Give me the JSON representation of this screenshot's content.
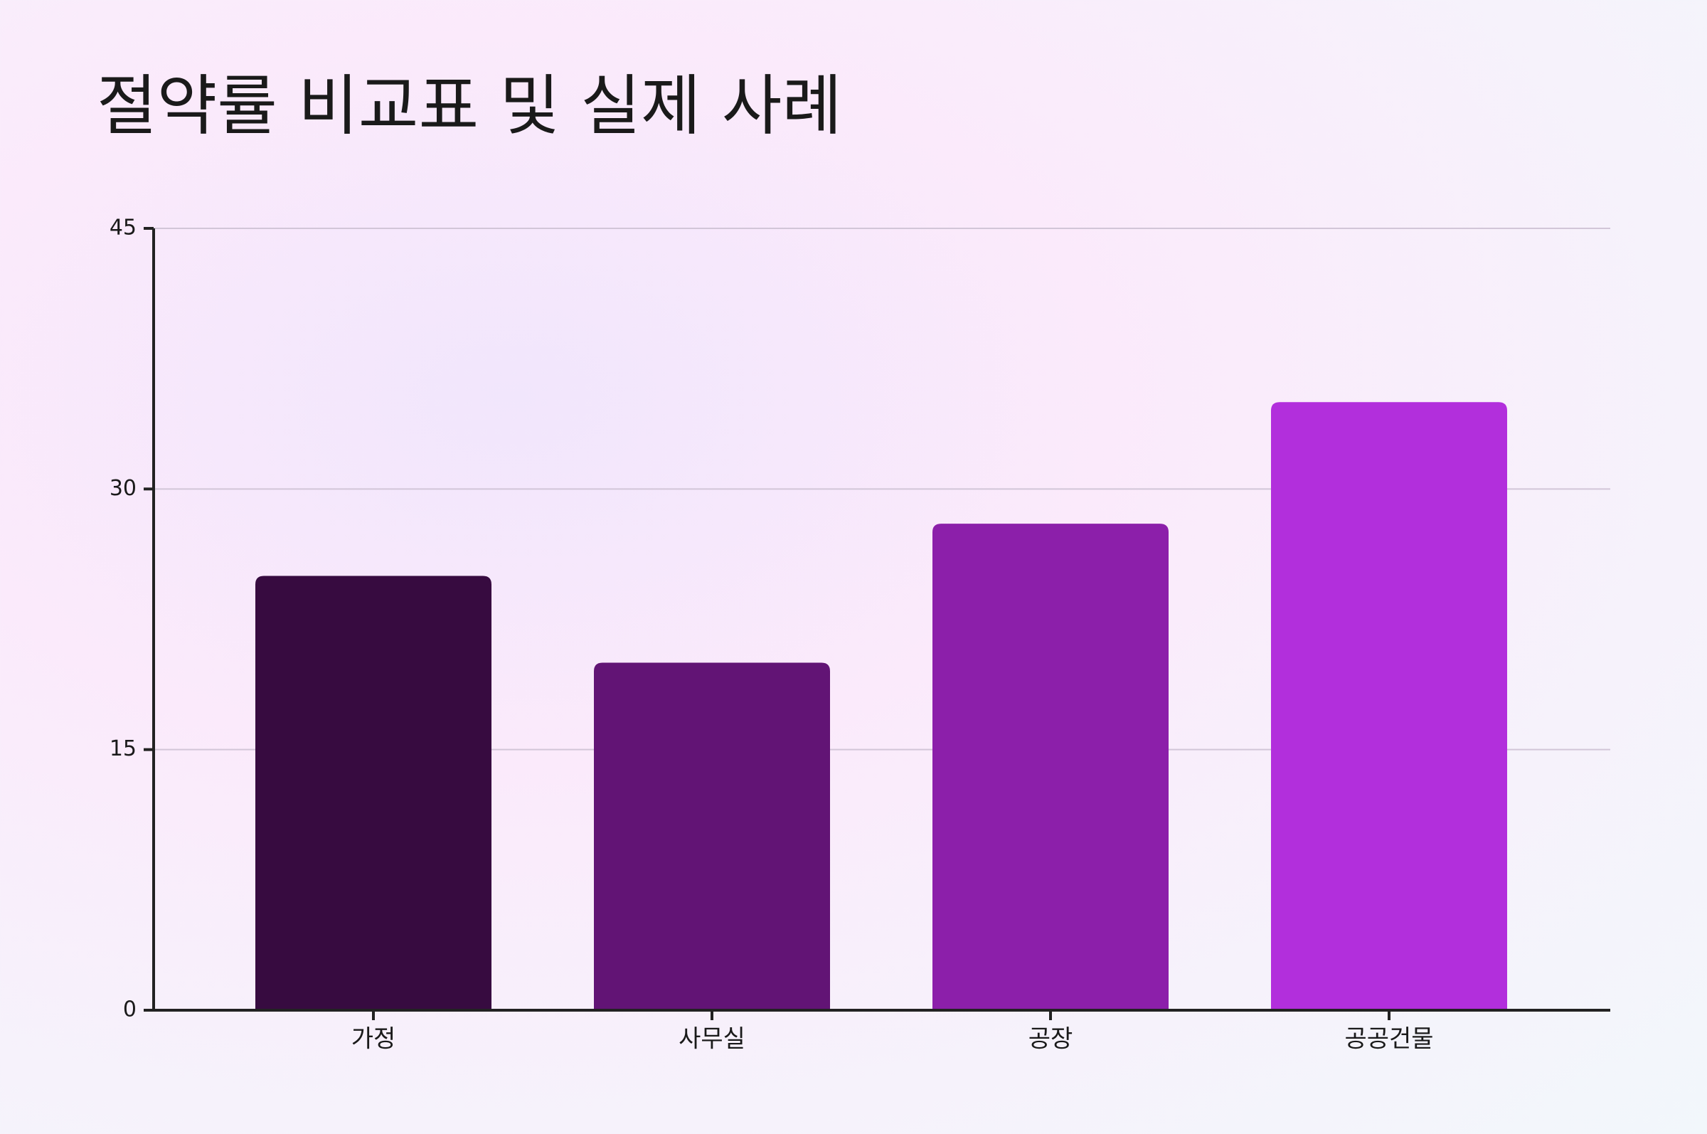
{
  "chart_data": {
    "type": "bar",
    "title": "절약률 비교표 및 실제 사례",
    "categories": [
      "가정",
      "사무실",
      "공장",
      "공공건물"
    ],
    "values": [
      25,
      20,
      28,
      35
    ],
    "colors": [
      "#370b40",
      "#621475",
      "#8c1faa",
      "#b22fdc"
    ],
    "ylim": [
      0,
      45
    ],
    "yticks": [
      0,
      15,
      30,
      45
    ],
    "grid": true
  }
}
